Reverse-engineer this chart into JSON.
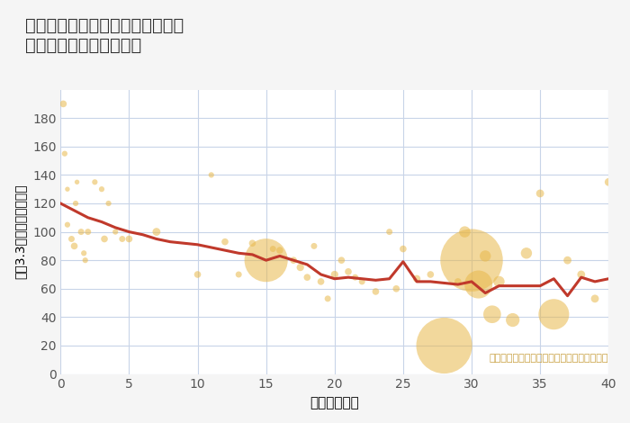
{
  "title": "千葉県千葉市花見川区検見川町の\n築年数別中古戸建て価格",
  "xlabel": "築年数（年）",
  "ylabel": "坪（3.3㎡）単価（万円）",
  "annotation": "円の大きさは、取引のあった物件面積を示す",
  "xlim": [
    0,
    40
  ],
  "ylim": [
    0,
    200
  ],
  "xticks": [
    0,
    5,
    10,
    15,
    20,
    25,
    30,
    35,
    40
  ],
  "yticks": [
    0,
    20,
    40,
    60,
    80,
    100,
    120,
    140,
    160,
    180
  ],
  "bg_color": "#f5f5f5",
  "plot_bg_color": "#ffffff",
  "grid_color": "#c8d4e8",
  "bubble_color": "#e8b84b",
  "bubble_alpha": 0.55,
  "line_color": "#c0392b",
  "line_width": 2.2,
  "scatter_x": [
    0.2,
    0.3,
    0.5,
    0.5,
    0.8,
    1.0,
    1.1,
    1.2,
    1.5,
    1.7,
    1.8,
    2.0,
    2.5,
    3.0,
    3.2,
    3.5,
    4.0,
    4.5,
    5.0,
    7.0,
    10.0,
    11.0,
    12.0,
    13.0,
    14.0,
    15.0,
    15.5,
    16.0,
    17.0,
    17.5,
    18.0,
    18.5,
    19.0,
    19.5,
    20.0,
    20.5,
    21.0,
    21.5,
    22.0,
    23.0,
    24.0,
    24.5,
    25.0,
    26.0,
    27.0,
    28.0,
    29.0,
    29.5,
    30.0,
    30.5,
    31.0,
    31.5,
    32.0,
    33.0,
    34.0,
    35.0,
    36.0,
    37.0,
    38.0,
    39.0,
    40.0
  ],
  "scatter_y": [
    190,
    155,
    130,
    105,
    95,
    90,
    120,
    135,
    100,
    85,
    80,
    100,
    135,
    130,
    95,
    120,
    100,
    95,
    95,
    100,
    70,
    140,
    93,
    70,
    92,
    80,
    88,
    87,
    80,
    75,
    68,
    90,
    65,
    53,
    70,
    80,
    72,
    68,
    65,
    58,
    100,
    60,
    88,
    67,
    70,
    20,
    65,
    100,
    80,
    63,
    83,
    42,
    65,
    38,
    85,
    127,
    42,
    80,
    70,
    53,
    135
  ],
  "scatter_size": [
    30,
    20,
    15,
    20,
    25,
    30,
    20,
    15,
    25,
    20,
    20,
    25,
    20,
    20,
    30,
    20,
    20,
    25,
    30,
    40,
    30,
    20,
    30,
    25,
    30,
    1200,
    25,
    30,
    30,
    35,
    30,
    25,
    30,
    25,
    35,
    30,
    30,
    25,
    25,
    30,
    25,
    30,
    30,
    35,
    30,
    2000,
    30,
    80,
    2500,
    500,
    80,
    200,
    80,
    120,
    80,
    40,
    600,
    40,
    40,
    40,
    40
  ],
  "line_x": [
    0,
    1,
    2,
    3,
    4,
    5,
    6,
    7,
    8,
    9,
    10,
    11,
    12,
    13,
    14,
    15,
    16,
    17,
    18,
    19,
    20,
    21,
    22,
    23,
    24,
    25,
    26,
    27,
    28,
    29,
    30,
    31,
    32,
    33,
    34,
    35,
    36,
    37,
    38,
    39,
    40
  ],
  "line_y": [
    120,
    115,
    110,
    107,
    103,
    100,
    98,
    95,
    93,
    92,
    91,
    89,
    87,
    85,
    84,
    80,
    83,
    80,
    77,
    70,
    67,
    68,
    67,
    66,
    67,
    79,
    65,
    65,
    64,
    63,
    65,
    57,
    62,
    62,
    62,
    62,
    67,
    55,
    68,
    65,
    67
  ]
}
